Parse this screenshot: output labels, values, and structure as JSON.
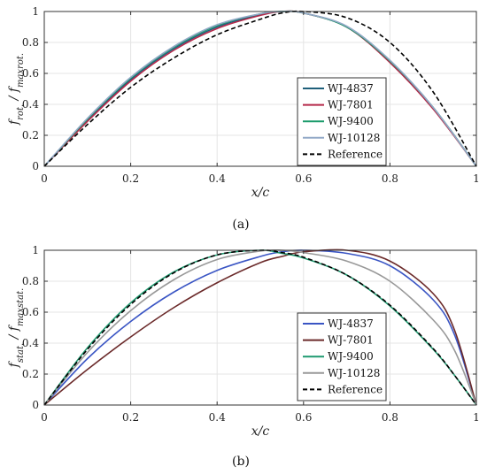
{
  "chart_data": [
    {
      "type": "line",
      "caption": "(a)",
      "xlabel": "x/c",
      "ylabel": "f_rot. / f_maxrot.",
      "xlim": [
        0,
        1
      ],
      "ylim": [
        0,
        1
      ],
      "xticks": [
        "0",
        "0.2",
        "0.4",
        "0.6",
        "0.8",
        "1"
      ],
      "yticks": [
        "0",
        "0.2",
        "0.4",
        "0.6",
        "0.8",
        "1"
      ],
      "grid": true,
      "legend_position": "bottom-right",
      "x": [
        0,
        0.1,
        0.2,
        0.3,
        0.4,
        0.5,
        0.55,
        0.6,
        0.7,
        0.8,
        0.9,
        1.0
      ],
      "series": [
        {
          "name": "WJ-4837",
          "color": "#1f5f7a",
          "dash": "solid",
          "values": [
            0,
            0.3,
            0.56,
            0.76,
            0.9,
            0.98,
            1.0,
            0.99,
            0.9,
            0.68,
            0.38,
            0
          ]
        },
        {
          "name": "WJ-7801",
          "color": "#b5294a",
          "dash": "solid",
          "values": [
            0,
            0.29,
            0.55,
            0.75,
            0.89,
            0.975,
            1.0,
            0.99,
            0.9,
            0.67,
            0.37,
            0
          ]
        },
        {
          "name": "WJ-9400",
          "color": "#1a9a6a",
          "dash": "solid",
          "values": [
            0,
            0.305,
            0.57,
            0.77,
            0.91,
            0.985,
            1.0,
            0.99,
            0.9,
            0.68,
            0.38,
            0
          ]
        },
        {
          "name": "WJ-10128",
          "color": "#93a9c7",
          "dash": "solid",
          "values": [
            0,
            0.31,
            0.575,
            0.775,
            0.915,
            0.985,
            1.0,
            0.99,
            0.905,
            0.685,
            0.38,
            0
          ]
        },
        {
          "name": "Reference",
          "color": "#000000",
          "dash": "dashed",
          "values": [
            0,
            0.27,
            0.51,
            0.7,
            0.85,
            0.95,
            0.99,
            1.0,
            0.96,
            0.8,
            0.48,
            0
          ]
        }
      ]
    },
    {
      "type": "line",
      "caption": "(b)",
      "xlabel": "x/c",
      "ylabel": "f_stat. / f_maxstat.",
      "xlim": [
        0,
        1
      ],
      "ylim": [
        0,
        1
      ],
      "xticks": [
        "0",
        "0.2",
        "0.4",
        "0.6",
        "0.8",
        "1"
      ],
      "yticks": [
        "0",
        "0.2",
        "0.4",
        "0.6",
        "0.8",
        "1"
      ],
      "grid": true,
      "legend_position": "bottom-right",
      "x": [
        0,
        0.1,
        0.2,
        0.3,
        0.4,
        0.5,
        0.55,
        0.6,
        0.7,
        0.8,
        0.9,
        0.95,
        1.0
      ],
      "series": [
        {
          "name": "WJ-4837",
          "color": "#3a55c4",
          "dash": "solid",
          "values": [
            0,
            0.3,
            0.54,
            0.73,
            0.87,
            0.96,
            0.99,
            1.0,
            0.98,
            0.9,
            0.68,
            0.45,
            0
          ]
        },
        {
          "name": "WJ-7801",
          "color": "#6b2a2a",
          "dash": "solid",
          "values": [
            0,
            0.23,
            0.44,
            0.63,
            0.79,
            0.92,
            0.96,
            0.99,
            1.0,
            0.93,
            0.72,
            0.48,
            0
          ]
        },
        {
          "name": "WJ-9400",
          "color": "#1f9a70",
          "dash": "solid",
          "values": [
            0,
            0.37,
            0.66,
            0.86,
            0.97,
            1.0,
            0.98,
            0.95,
            0.84,
            0.64,
            0.36,
            0.19,
            0
          ]
        },
        {
          "name": "WJ-10128",
          "color": "#999999",
          "dash": "solid",
          "values": [
            0,
            0.34,
            0.61,
            0.81,
            0.94,
            0.995,
            1.0,
            0.985,
            0.93,
            0.8,
            0.55,
            0.35,
            0
          ]
        },
        {
          "name": "Reference",
          "color": "#000000",
          "dash": "dashed",
          "values": [
            0,
            0.36,
            0.65,
            0.855,
            0.97,
            1.0,
            0.985,
            0.955,
            0.84,
            0.645,
            0.365,
            0.19,
            0
          ]
        }
      ]
    }
  ]
}
